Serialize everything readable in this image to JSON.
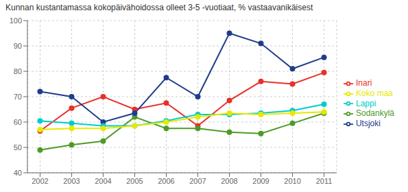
{
  "chart_data": {
    "type": "line",
    "title": "Kunnan kustantamassa kokopäivähoidossa olleet 3-5 -vuotiaat, % vastaavanikäisest",
    "x": [
      2002,
      2003,
      2004,
      2005,
      2006,
      2007,
      2008,
      2009,
      2010,
      2011
    ],
    "series": [
      {
        "name": "Inari",
        "color": "#e8312a",
        "values": [
          56.5,
          65.5,
          70.0,
          65.0,
          67.5,
          58.5,
          68.5,
          76.0,
          75.0,
          79.5
        ]
      },
      {
        "name": "Sodankylä",
        "color": "#4e9a29",
        "values": [
          49.0,
          51.0,
          52.5,
          62.0,
          57.5,
          57.5,
          56.0,
          55.5,
          59.5,
          63.5
        ]
      },
      {
        "name": "Utsjoki",
        "color": "#1f3d8b",
        "values": [
          72.0,
          70.0,
          60.0,
          63.5,
          77.5,
          70.0,
          95.0,
          91.0,
          81.0,
          85.5
        ]
      },
      {
        "name": "Lappi",
        "color": "#00cccc",
        "values": [
          60.5,
          59.5,
          58.5,
          58.5,
          60.5,
          63.0,
          63.0,
          63.5,
          64.5,
          67.0
        ]
      },
      {
        "name": "Koko maa",
        "color": "#e8e800",
        "values": [
          57.0,
          57.5,
          57.5,
          58.5,
          60.0,
          62.0,
          63.5,
          63.0,
          63.5,
          64.0
        ]
      }
    ],
    "xlim": [
      2001.6,
      2011.4
    ],
    "xticks": [
      2002,
      2003,
      2004,
      2005,
      2006,
      2007,
      2008,
      2009,
      2010,
      2011
    ],
    "ylim": [
      40,
      100
    ],
    "yticks": [
      40,
      50,
      60,
      70,
      80,
      90,
      100
    ],
    "grid": true,
    "legend": "right",
    "marker": "circle"
  }
}
